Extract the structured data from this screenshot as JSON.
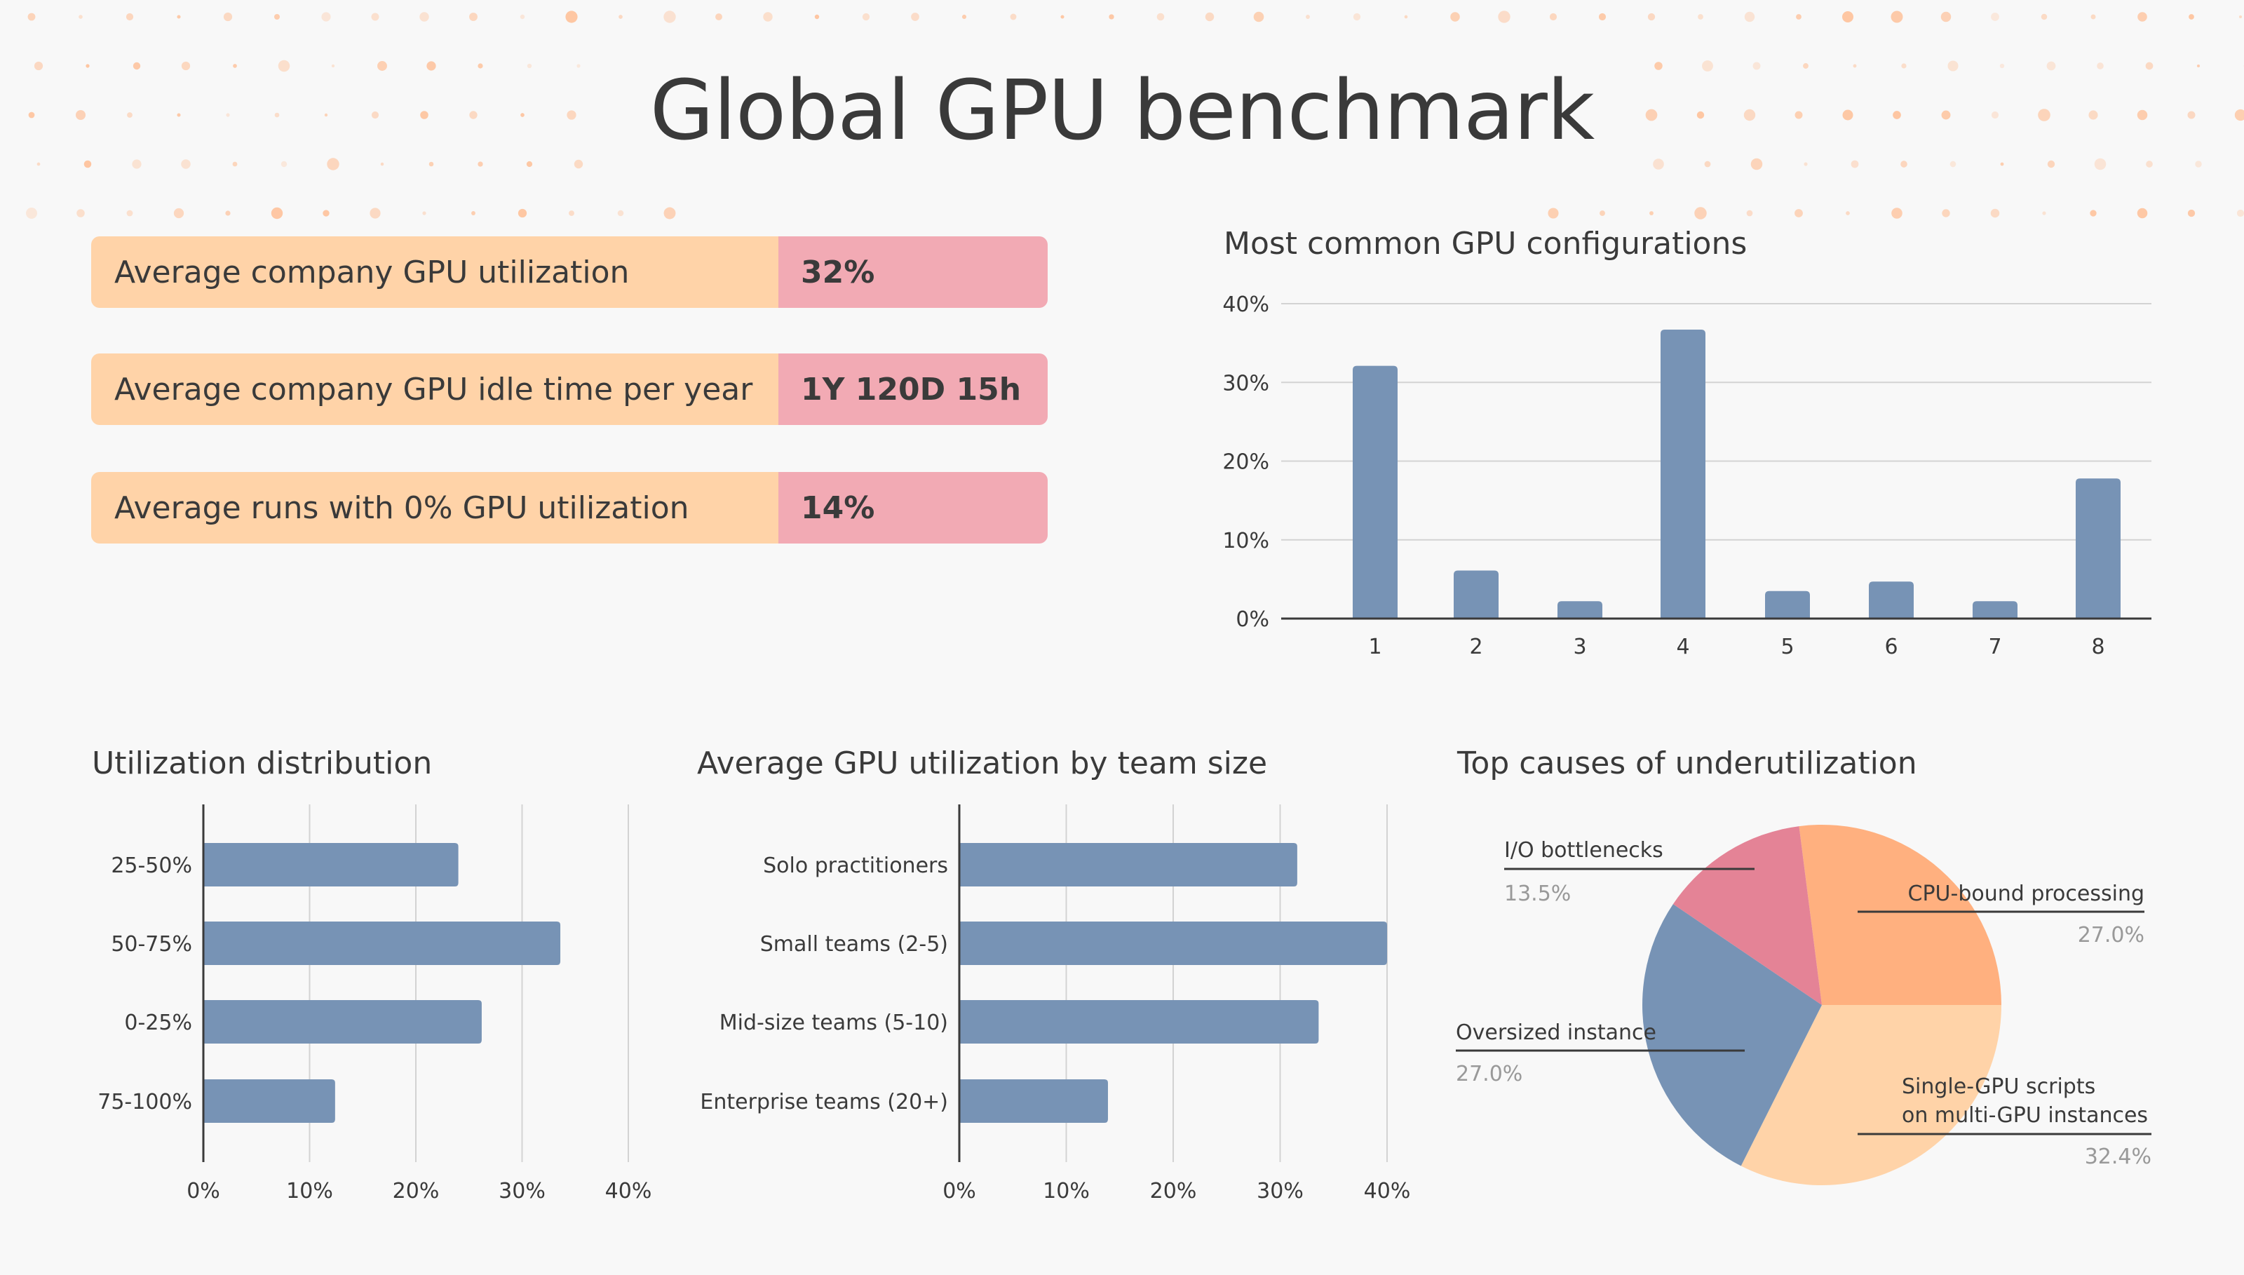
{
  "page": {
    "title": "Global GPU benchmark"
  },
  "stats": [
    {
      "label": "Average company GPU utilization",
      "value": "32%"
    },
    {
      "label": "Average company GPU idle time per year",
      "value": "1Y 120D 15h"
    },
    {
      "label": "Average runs with 0% GPU utilization",
      "value": "14%"
    }
  ],
  "colors": {
    "bar": "#7793b5",
    "stat_label_bg": "#ffd3a8",
    "stat_value_bg": "#f2aab4",
    "dots": "#ffb88a"
  },
  "chart_data": [
    {
      "type": "bar",
      "title": "Most common GPU configurations",
      "categories": [
        "1",
        "2",
        "3",
        "4",
        "5",
        "6",
        "7",
        "8"
      ],
      "values": [
        32.1,
        6.1,
        2.2,
        36.7,
        3.5,
        4.7,
        2.2,
        17.8
      ],
      "ylim": [
        0,
        40
      ],
      "yticks": [
        "0%",
        "10%",
        "20%",
        "30%",
        "40%"
      ],
      "grid": true
    },
    {
      "type": "bar",
      "orientation": "horizontal",
      "title": "Utilization distribution",
      "categories": [
        "25-50%",
        "50-75%",
        "0-25%",
        "75-100%"
      ],
      "values": [
        24.0,
        33.6,
        26.2,
        12.4
      ],
      "xlim": [
        0,
        40
      ],
      "xticks": [
        "0%",
        "10%",
        "20%",
        "30%",
        "40%"
      ],
      "grid": true
    },
    {
      "type": "bar",
      "orientation": "horizontal",
      "title": "Average GPU utilization by team size",
      "categories": [
        "Solo practitioners",
        "Small teams (2-5)",
        "Mid-size teams (5-10)",
        "Enterprise teams (20+)"
      ],
      "values": [
        31.6,
        40.0,
        33.6,
        13.9
      ],
      "xlim": [
        0,
        40
      ],
      "xticks": [
        "0%",
        "10%",
        "20%",
        "30%",
        "40%"
      ],
      "grid": true
    },
    {
      "type": "pie",
      "title": "Top causes of underutilization",
      "slices": [
        {
          "label": "CPU-bound processing",
          "value": 27.0,
          "display": "27.0%",
          "color": "#ffb07f"
        },
        {
          "label": "Single-GPU scripts\non multi-GPU instances",
          "line1": "Single-GPU scripts",
          "line2": "on multi-GPU instances",
          "value": 32.4,
          "display": "32.4%",
          "color": "#ffd3a8"
        },
        {
          "label": "Oversized instance",
          "value": 27.0,
          "display": "27.0%",
          "color": "#7793b5"
        },
        {
          "label": "I/O bottlenecks",
          "value": 13.5,
          "display": "13.5%",
          "color": "#e48396"
        }
      ]
    }
  ]
}
